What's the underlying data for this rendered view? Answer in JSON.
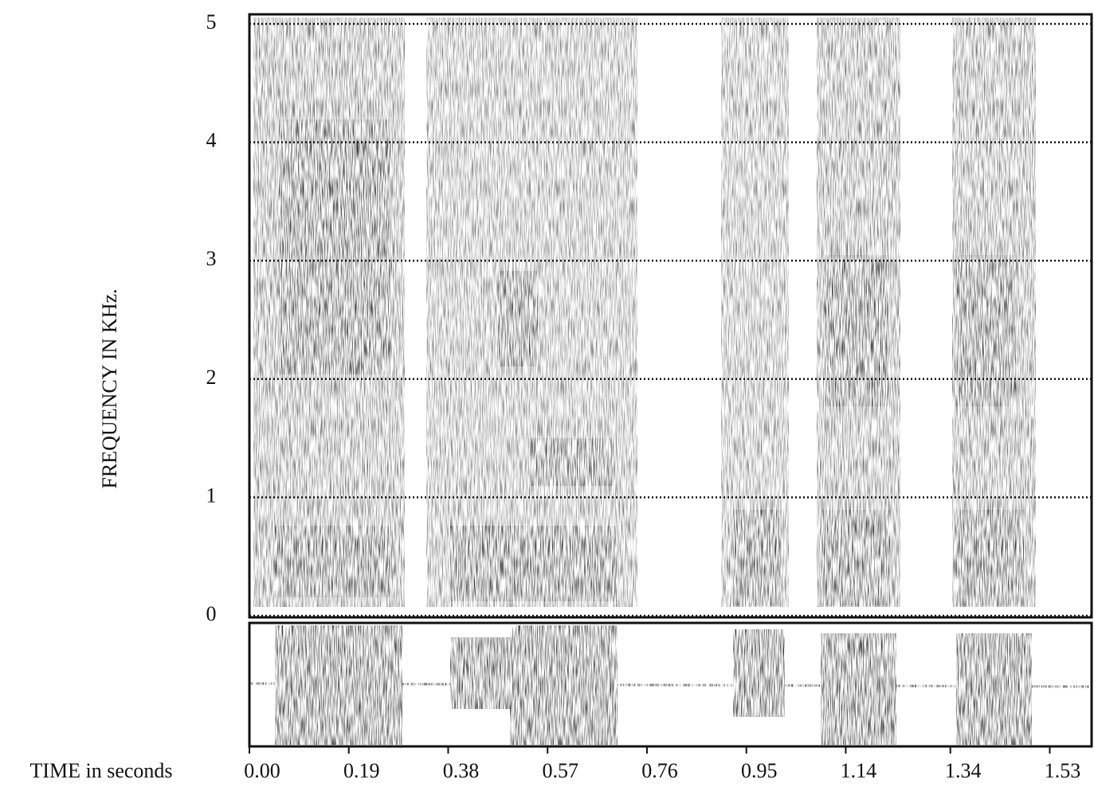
{
  "chart_data": {
    "type": "spectrogram",
    "y_label": "FREQUENCY IN KHz.",
    "x_label": "TIME in seconds",
    "ylim": [
      0,
      5
    ],
    "yticks": [
      0,
      1,
      2,
      3,
      4,
      5
    ],
    "xlim": [
      0,
      1.61
    ],
    "xticks": [
      {
        "value": 0,
        "label": "0.00"
      },
      0.19,
      0.38,
      0.57,
      0.76,
      0.95,
      1.14,
      1.34,
      1.53
    ],
    "grid": true
  }
}
